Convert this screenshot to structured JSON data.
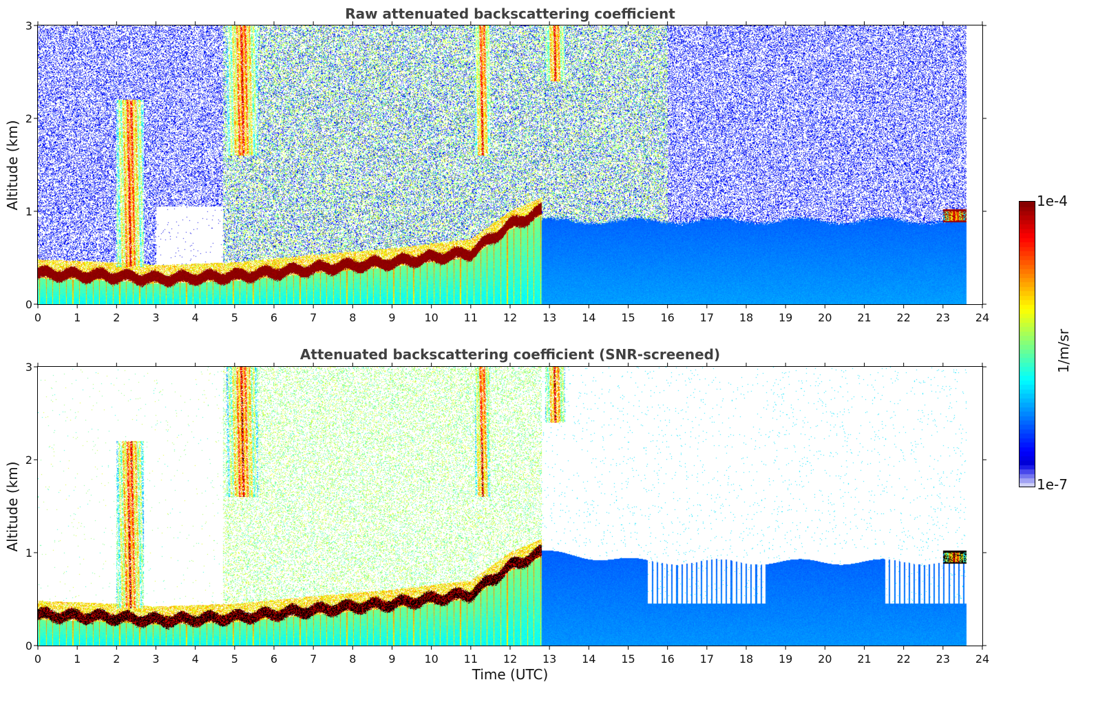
{
  "chart_data": [
    {
      "type": "heatmap",
      "title": "Raw attenuated backscattering coefficient",
      "xlabel": "",
      "ylabel": "Altitude (km)",
      "xlim": [
        0,
        24
      ],
      "ylim": [
        0,
        3
      ],
      "xticks": [
        "0",
        "1",
        "2",
        "3",
        "4",
        "5",
        "6",
        "7",
        "8",
        "9",
        "10",
        "11",
        "12",
        "13",
        "14",
        "15",
        "16",
        "17",
        "18",
        "19",
        "20",
        "21",
        "22",
        "23",
        "24"
      ],
      "yticks": [
        "0",
        "1",
        "2",
        "3"
      ],
      "screened": false,
      "data_end_time": 23.6,
      "boundary_layer_top_km": [
        {
          "t": 0,
          "z": 0.33
        },
        {
          "t": 2,
          "z": 0.3
        },
        {
          "t": 3,
          "z": 0.27
        },
        {
          "t": 5,
          "z": 0.3
        },
        {
          "t": 7,
          "z": 0.38
        },
        {
          "t": 9,
          "z": 0.45
        },
        {
          "t": 11,
          "z": 0.55
        },
        {
          "t": 12,
          "z": 0.85
        },
        {
          "t": 12.8,
          "z": 1.0
        }
      ],
      "cloud_features": [
        {
          "t_start": 2.0,
          "t_end": 2.7,
          "z_bottom": 0.4,
          "z_top": 2.2
        },
        {
          "t_start": 4.8,
          "t_end": 5.6,
          "z_bottom": 1.6,
          "z_top": 3.0
        },
        {
          "t_start": 11.1,
          "t_end": 11.5,
          "z_bottom": 1.6,
          "z_top": 3.0
        },
        {
          "t_start": 12.9,
          "t_end": 13.4,
          "z_bottom": 2.4,
          "z_top": 3.0
        },
        {
          "t_start": 23.0,
          "t_end": 23.6,
          "z_bottom": 0.9,
          "z_top": 1.0
        }
      ],
      "night_layer_top_km": 0.9
    },
    {
      "type": "heatmap",
      "title": "Attenuated backscattering coefficient (SNR-screened)",
      "xlabel": "Time (UTC)",
      "ylabel": "Altitude (km)",
      "xlim": [
        0,
        24
      ],
      "ylim": [
        0,
        3
      ],
      "xticks": [
        "0",
        "1",
        "2",
        "3",
        "4",
        "5",
        "6",
        "7",
        "8",
        "9",
        "10",
        "11",
        "12",
        "13",
        "14",
        "15",
        "16",
        "17",
        "18",
        "19",
        "20",
        "21",
        "22",
        "23",
        "24"
      ],
      "yticks": [
        "0",
        "1",
        "2",
        "3"
      ],
      "screened": true,
      "data_end_time": 23.6,
      "screened_layer_top_km": 0.45
    }
  ],
  "colorbar": {
    "label": "1/m/sr",
    "max_label": "1e-4",
    "min_label": "1e-7",
    "colormap": "jet",
    "min_value": 1e-07,
    "max_value": 0.0001,
    "scale": "log"
  }
}
